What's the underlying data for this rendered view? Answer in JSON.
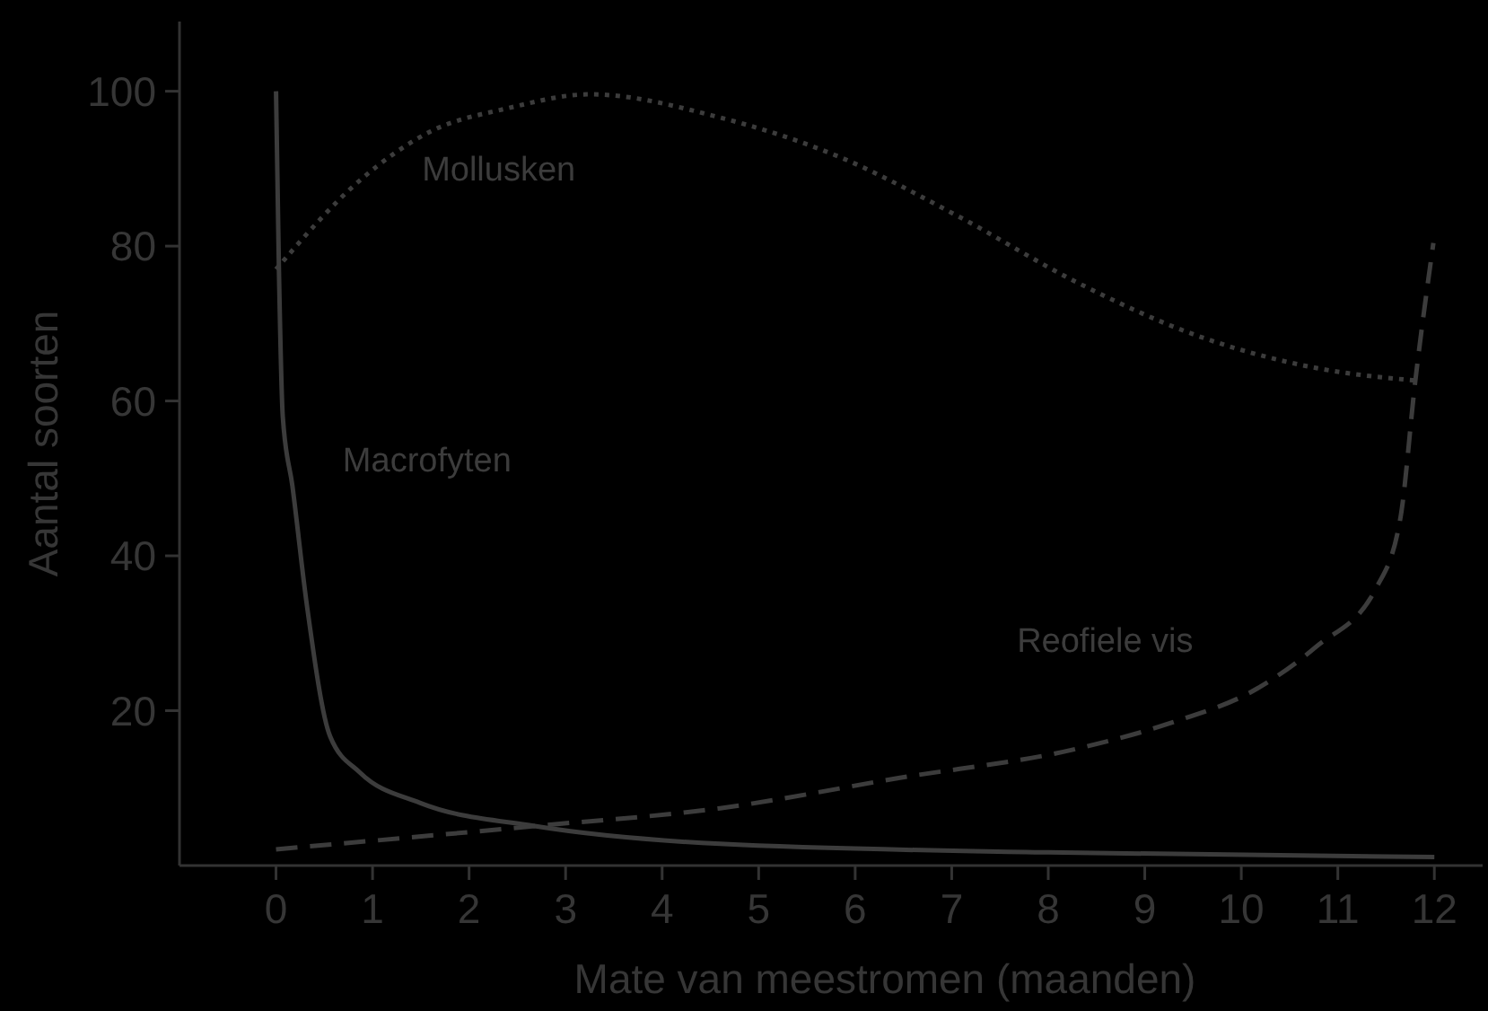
{
  "chart_data": {
    "type": "line",
    "xlabel": "Mate van meestromen (maanden)",
    "ylabel": "Aantal soorten",
    "xlim": [
      -1,
      12.5
    ],
    "ylim": [
      0,
      109
    ],
    "xticks": [
      0,
      1,
      2,
      3,
      4,
      5,
      6,
      7,
      8,
      9,
      10,
      11,
      12
    ],
    "yticks": [
      20,
      40,
      60,
      80,
      100
    ],
    "series": [
      {
        "name": "Mollusken",
        "color": "#3c3c3c",
        "line_style": "dotted",
        "x": [
          0,
          0.87,
          1.6,
          2.4,
          3.25,
          4.6,
          5.84,
          7.06,
          8.3,
          9.55,
          10.8,
          11.84
        ],
        "values": [
          77,
          88.5,
          94.8,
          97.8,
          99.6,
          96.6,
          91.5,
          83.9,
          75.3,
          68.4,
          64.2,
          62.6
        ]
      },
      {
        "name": "Macrofyten",
        "color": "#3c3c3c",
        "line_style": "solid",
        "x": [
          0,
          0.03,
          0.07,
          0.17,
          0.32,
          0.56,
          0.87,
          1.49,
          2.68,
          4.6,
          8,
          12
        ],
        "values": [
          100,
          77,
          58,
          49,
          33.6,
          16.7,
          12,
          8.1,
          5.1,
          2.8,
          1.7,
          1.1
        ]
      },
      {
        "name": "Reofiele vis",
        "color": "#3c3c3c",
        "line_style": "dashed",
        "x": [
          0,
          2.68,
          4.6,
          6.45,
          8.3,
          9.24,
          10.17,
          10.78,
          11.4,
          11.65,
          11.8,
          11.99
        ],
        "values": [
          2.1,
          5.1,
          7.4,
          11.3,
          15.1,
          18.3,
          22.9,
          28.3,
          35.9,
          45,
          62.3,
          80.4
        ]
      }
    ]
  }
}
